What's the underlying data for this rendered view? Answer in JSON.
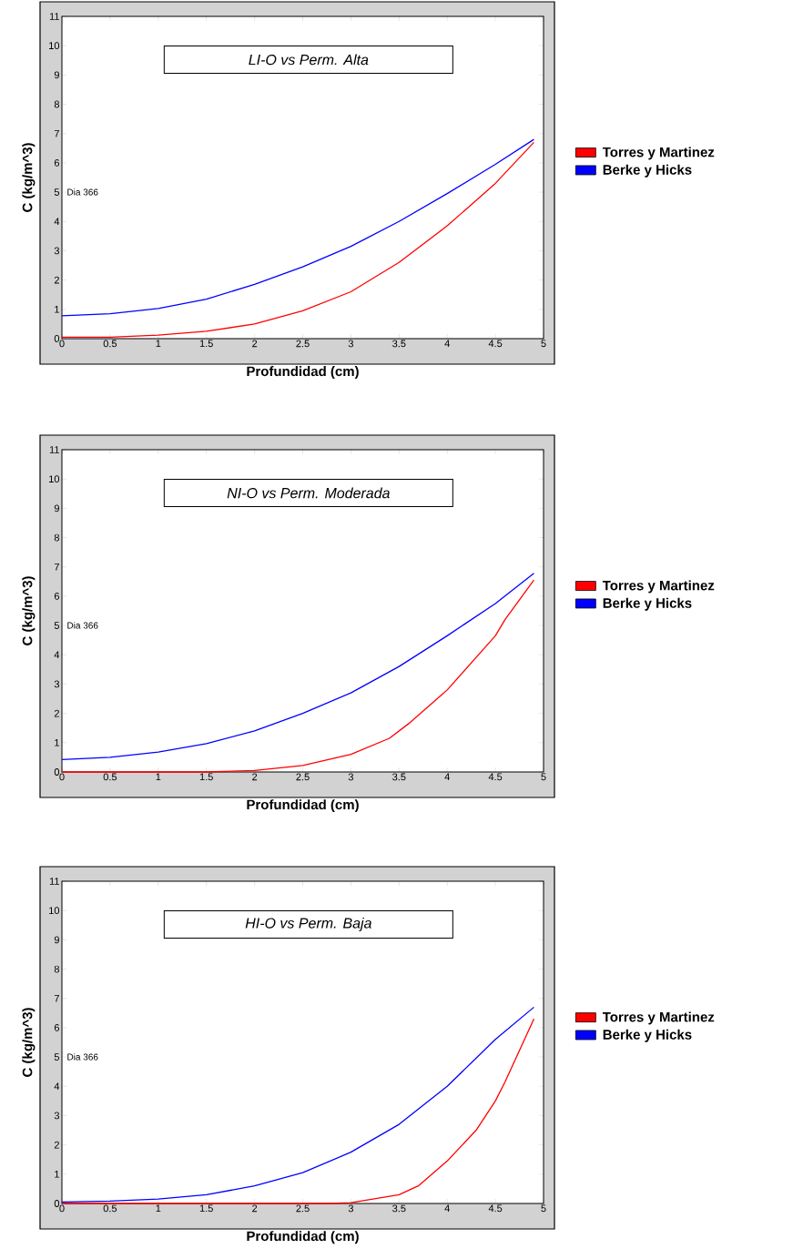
{
  "chart_data": [
    {
      "type": "line",
      "title": "LI-O vs Perm. Alta",
      "xlabel": "Profundidad (cm)",
      "ylabel": "C (kg/m^3)",
      "annotations": [
        "Dia 366"
      ],
      "legend": "right",
      "grid": false,
      "marker": "none",
      "line_style": "solid",
      "xlim": [
        0,
        5
      ],
      "ylim": [
        0,
        11
      ],
      "xticks": [
        0,
        0.5,
        1,
        1.5,
        2,
        2.5,
        3,
        3.5,
        4,
        4.5,
        5
      ],
      "yticks": [
        0,
        1,
        2,
        3,
        4,
        5,
        6,
        7,
        8,
        9,
        10,
        11
      ],
      "x": [
        0,
        0.5,
        1,
        1.5,
        2,
        2.5,
        3,
        3.5,
        4,
        4.5,
        4.9
      ],
      "series": [
        {
          "name": "Torres y Martinez",
          "color": "#ff0000",
          "values": [
            0.05,
            0.05,
            0.12,
            0.25,
            0.5,
            0.95,
            1.6,
            2.6,
            3.85,
            5.3,
            6.7
          ]
        },
        {
          "name": "Berke y Hicks",
          "color": "#0000ff",
          "values": [
            0.78,
            0.85,
            1.03,
            1.35,
            1.85,
            2.45,
            3.15,
            4.0,
            4.95,
            5.95,
            6.8
          ]
        }
      ]
    },
    {
      "type": "line",
      "title": "NI-O vs Perm. Moderada",
      "xlabel": "Profundidad (cm)",
      "ylabel": "C (kg/m^3)",
      "annotations": [
        "Dia 366"
      ],
      "legend": "right",
      "grid": false,
      "marker": "none",
      "line_style": "solid",
      "xlim": [
        0,
        5
      ],
      "ylim": [
        0,
        11
      ],
      "xticks": [
        0,
        0.5,
        1,
        1.5,
        2,
        2.5,
        3,
        3.5,
        4,
        4.5,
        5
      ],
      "yticks": [
        0,
        1,
        2,
        3,
        4,
        5,
        6,
        7,
        8,
        9,
        10,
        11
      ],
      "series": [
        {
          "name": "Torres y Martinez",
          "color": "#ff0000",
          "x": [
            0,
            1,
            1.5,
            2,
            2.5,
            3,
            3.4,
            3.6,
            4,
            4.5,
            4.6,
            4.9
          ],
          "values": [
            0,
            0,
            0,
            0.05,
            0.22,
            0.6,
            1.15,
            1.65,
            2.8,
            4.65,
            5.2,
            6.55
          ]
        },
        {
          "name": "Berke y Hicks",
          "color": "#0000ff",
          "x": [
            0,
            0.5,
            1,
            1.5,
            2,
            2.5,
            3,
            3.5,
            4,
            4.5,
            4.9
          ],
          "values": [
            0.42,
            0.5,
            0.68,
            0.97,
            1.4,
            2.0,
            2.7,
            3.6,
            4.65,
            5.75,
            6.78
          ]
        }
      ]
    },
    {
      "type": "line",
      "title": "HI-O vs Perm. Baja",
      "xlabel": "Profundidad (cm)",
      "ylabel": "C (kg/m^3)",
      "annotations": [
        "Dia 366"
      ],
      "legend": "right",
      "grid": false,
      "marker": "none",
      "line_style": "solid",
      "xlim": [
        0,
        5
      ],
      "ylim": [
        0,
        11
      ],
      "xticks": [
        0,
        0.5,
        1,
        1.5,
        2,
        2.5,
        3,
        3.5,
        4,
        4.5,
        5
      ],
      "yticks": [
        0,
        1,
        2,
        3,
        4,
        5,
        6,
        7,
        8,
        9,
        10,
        11
      ],
      "series": [
        {
          "name": "Torres y Martinez",
          "color": "#ff0000",
          "x": [
            0,
            2.8,
            3,
            3.5,
            3.7,
            4,
            4.3,
            4.5,
            4.6,
            4.9
          ],
          "values": [
            0,
            0,
            0.03,
            0.3,
            0.6,
            1.45,
            2.5,
            3.5,
            4.15,
            6.3
          ]
        },
        {
          "name": "Berke y Hicks",
          "color": "#0000ff",
          "x": [
            0,
            0.5,
            1,
            1.5,
            2,
            2.5,
            3,
            3.5,
            4,
            4.5,
            4.9
          ],
          "values": [
            0.05,
            0.08,
            0.15,
            0.3,
            0.6,
            1.05,
            1.75,
            2.7,
            4.0,
            5.6,
            6.7
          ]
        }
      ]
    }
  ]
}
